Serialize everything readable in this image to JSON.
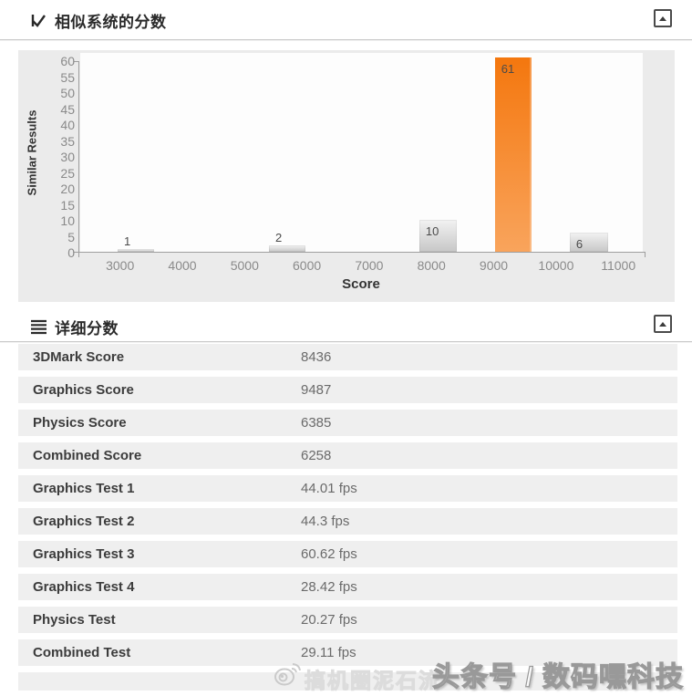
{
  "section_scores": {
    "title": "相似系统的分数"
  },
  "chart_data": {
    "type": "bar",
    "title": "相似系统的分数",
    "xlabel": "Score",
    "ylabel": "Similar Results",
    "xlim": [
      2360,
      11393
    ],
    "ylim": [
      0,
      60
    ],
    "x_ticks": [
      3000,
      4000,
      5000,
      6000,
      7000,
      8000,
      9000,
      10000,
      11000
    ],
    "y_ticks": [
      0,
      5,
      10,
      15,
      20,
      25,
      30,
      35,
      40,
      45,
      50,
      55,
      60
    ],
    "grid": false,
    "legend": false,
    "bins": [
      {
        "x0": 2960,
        "x1": 3546,
        "count": 1,
        "highlight": false
      },
      {
        "x0": 5391,
        "x1": 5977,
        "count": 2,
        "highlight": false
      },
      {
        "x0": 7805,
        "x1": 8406,
        "count": 10,
        "highlight": false
      },
      {
        "x0": 9019,
        "x1": 9605,
        "count": 61,
        "highlight": true
      },
      {
        "x0": 10220,
        "x1": 10834,
        "count": 6,
        "highlight": false
      }
    ],
    "colors": {
      "highlight_bar": "#f4770e",
      "default_bar": "#d9d9d9"
    }
  },
  "section_details": {
    "title": "详细分数",
    "rows": [
      {
        "label": "3DMark Score",
        "value": "8436"
      },
      {
        "label": "Graphics Score",
        "value": "9487"
      },
      {
        "label": "Physics Score",
        "value": "6385"
      },
      {
        "label": "Combined Score",
        "value": "6258"
      },
      {
        "label": "Graphics Test 1",
        "value": "44.01 fps"
      },
      {
        "label": "Graphics Test 2",
        "value": "44.3 fps"
      },
      {
        "label": "Graphics Test 3",
        "value": "60.62 fps"
      },
      {
        "label": "Graphics Test 4",
        "value": "28.42 fps"
      },
      {
        "label": "Physics Test",
        "value": "20.27 fps"
      },
      {
        "label": "Combined Test",
        "value": "29.11 fps"
      }
    ]
  },
  "watermark": {
    "source_faint": "搞机圈泥石流",
    "channel": "头条号 / 数码嘿科技"
  }
}
